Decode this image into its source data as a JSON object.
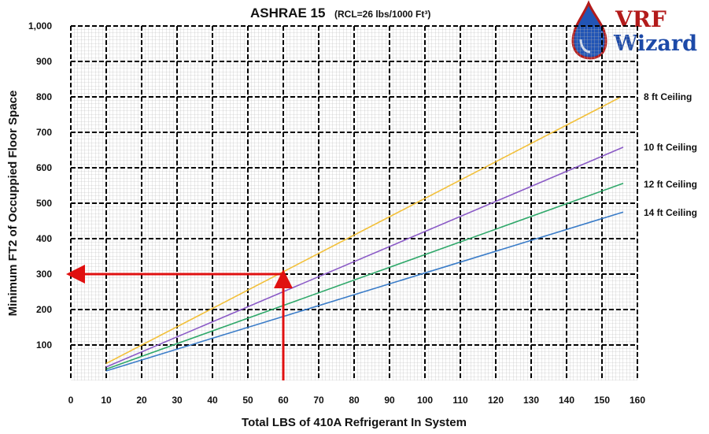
{
  "chart_data": {
    "type": "line",
    "title": "ASHRAE 15",
    "subtitle": "(RCL=26 lbs/1000 Ft³)",
    "xlabel": "Total LBS of 410A Refrigerant In System",
    "ylabel": "Minimum FT2 of Occuppied Floor Space",
    "xlim": [
      0,
      160
    ],
    "ylim": [
      0,
      1000
    ],
    "x_ticks": [
      "0",
      "10",
      "20",
      "30",
      "40",
      "50",
      "60",
      "70",
      "80",
      "90",
      "100",
      "110",
      "120",
      "130",
      "140",
      "150",
      "160"
    ],
    "y_ticks": [
      "100",
      "200",
      "300",
      "400",
      "500",
      "600",
      "700",
      "800",
      "900",
      "1,000"
    ],
    "grid": true,
    "series": [
      {
        "name": "8 ft Ceiling",
        "color": "#f2c03a",
        "x": [
          10,
          155
        ],
        "y": [
          48,
          798
        ]
      },
      {
        "name": "10 ft Ceiling",
        "color": "#8a5ac6",
        "x": [
          10,
          156
        ],
        "y": [
          38,
          658
        ]
      },
      {
        "name": "12 ft Ceiling",
        "color": "#2fa86a",
        "x": [
          10,
          156
        ],
        "y": [
          32,
          556
        ]
      },
      {
        "name": "14 ft Ceiling",
        "color": "#3a7cc8",
        "x": [
          10,
          156
        ],
        "y": [
          27,
          475
        ]
      }
    ],
    "annotations": [
      {
        "type": "arrow",
        "color": "#e01010",
        "from": [
          60,
          0
        ],
        "to": [
          60,
          300
        ]
      },
      {
        "type": "arrow",
        "color": "#e01010",
        "from": [
          60,
          300
        ],
        "to": [
          0,
          300
        ]
      }
    ]
  },
  "logo": {
    "line1": "VRF",
    "line2": "Wizard"
  }
}
